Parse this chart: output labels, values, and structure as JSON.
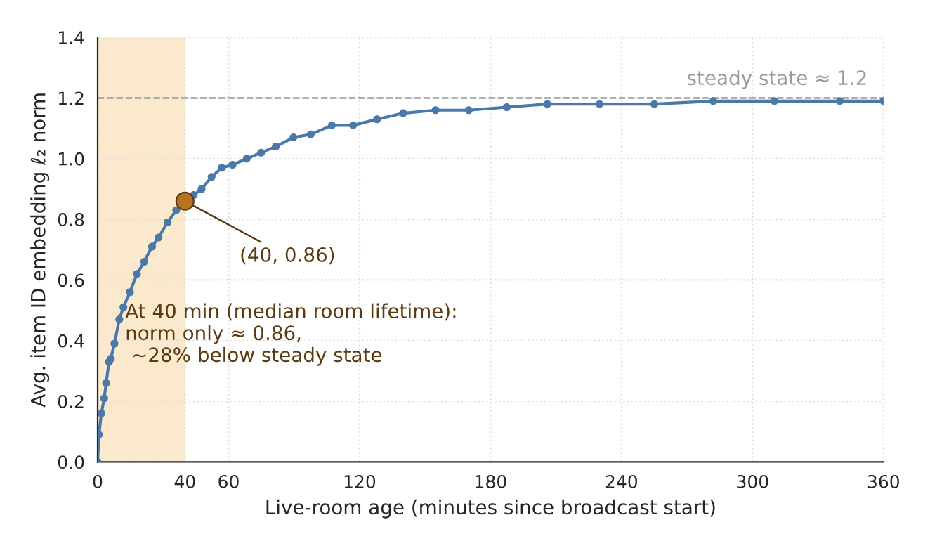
{
  "chart_data": {
    "type": "line",
    "xlabel": "Live-room age (minutes since broadcast start)",
    "ylabel": "Avg. item ID embedding ℓ₂ norm",
    "xlim": [
      0,
      360
    ],
    "xticks": [
      0,
      40,
      60,
      120,
      180,
      240,
      300,
      360
    ],
    "ylim": [
      0,
      1.4
    ],
    "yticks": [
      {
        "value": 0,
        "label": "0.0"
      },
      0.2,
      0.4,
      0.6,
      0.8,
      {
        "value": 1,
        "label": "1.0"
      },
      1.2,
      1.4
    ],
    "grid": true,
    "marker": "circle",
    "line_style": "solid",
    "series": [
      {
        "color": "#4a78a8",
        "x": [
          0,
          0.6,
          1.7,
          3,
          3.9,
          5.2,
          6,
          7.7,
          9.9,
          11.8,
          14.8,
          18,
          21.3,
          24.9,
          27.9,
          32,
          36,
          40,
          44,
          47.6,
          52.2,
          56.9,
          61.8,
          68.3,
          74.9,
          81.6,
          89.7,
          97.6,
          107.3,
          117,
          128,
          140,
          154.8,
          170,
          187.4,
          206,
          229.9,
          255,
          282,
          310,
          340,
          360
        ],
        "values": [
          0,
          0.09,
          0.16,
          0.21,
          0.26,
          0.33,
          0.34,
          0.39,
          0.47,
          0.51,
          0.56,
          0.62,
          0.66,
          0.71,
          0.74,
          0.79,
          0.83,
          0.86,
          0.88,
          0.9,
          0.94,
          0.97,
          0.98,
          1.0,
          1.02,
          1.04,
          1.07,
          1.08,
          1.11,
          1.11,
          1.13,
          1.15,
          1.16,
          1.16,
          1.17,
          1.18,
          1.18,
          1.18,
          1.19,
          1.19,
          1.19,
          1.19
        ]
      },
      {
        "type": "scatter",
        "color": "#b8731f",
        "x": [
          40
        ],
        "values": [
          0.86
        ]
      }
    ],
    "bands": [
      {
        "axis": "x",
        "from": 0,
        "to": 40,
        "color": "#fae9cd"
      }
    ],
    "ref_lines": [
      {
        "axis": "y",
        "value": 1.2,
        "label": "steady state ≈ 1.2",
        "color": "#999999",
        "line_style": "dashed"
      }
    ],
    "annotations": [
      {
        "text": "(40, 0.86)",
        "x": 40,
        "y": 0.86
      },
      "At 40 min (median room lifetime):\nnorm only ≈ 0.86,\n ~28% below steady state"
    ]
  }
}
